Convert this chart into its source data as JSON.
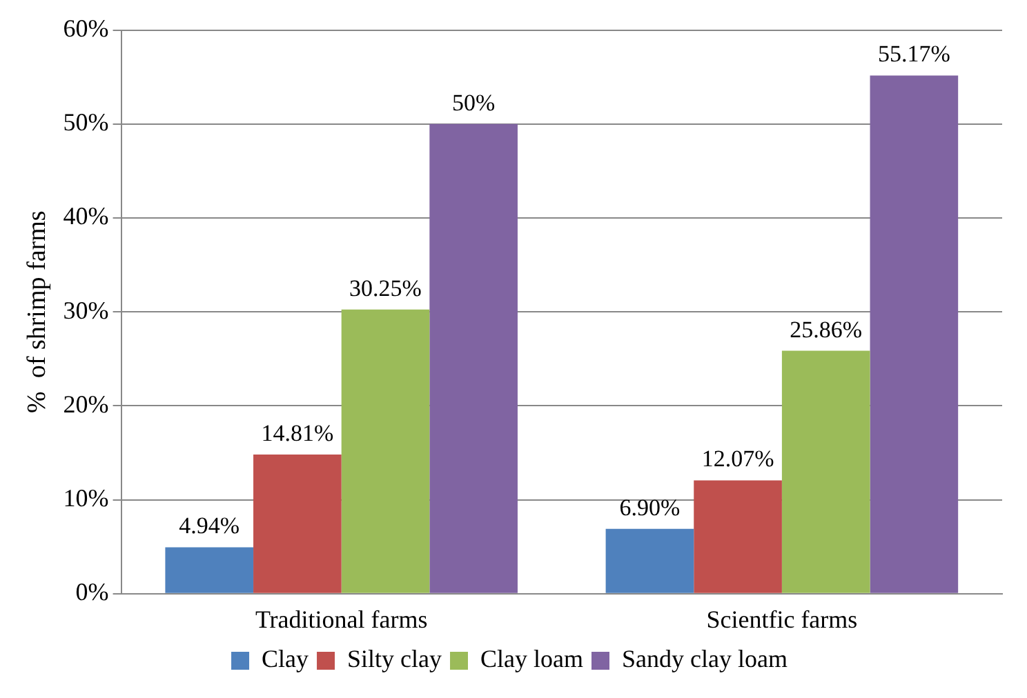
{
  "chart_data": {
    "type": "bar",
    "ylabel": "%  of shrimp farms",
    "categories": [
      "Traditional farms",
      "Scientfic farms"
    ],
    "series": [
      {
        "name": "Clay",
        "color": "#4f81bd",
        "values": [
          4.94,
          6.9
        ],
        "value_labels": [
          "4.94%",
          "6.90%"
        ]
      },
      {
        "name": "Silty clay",
        "color": "#c0504d",
        "values": [
          14.81,
          12.07
        ],
        "value_labels": [
          "14.81%",
          "12.07%"
        ]
      },
      {
        "name": "Clay loam",
        "color": "#9bbb59",
        "values": [
          30.25,
          25.86
        ],
        "value_labels": [
          "30.25%",
          "25.86%"
        ]
      },
      {
        "name": "Sandy clay loam",
        "color": "#8064a2",
        "values": [
          50,
          55.17
        ],
        "value_labels": [
          "50%",
          "55.17%"
        ]
      }
    ],
    "ylim": [
      0,
      60
    ],
    "yticks": [
      {
        "value": 0,
        "label": "0%"
      },
      {
        "value": 10,
        "label": "10%"
      },
      {
        "value": 20,
        "label": "20%"
      },
      {
        "value": 30,
        "label": "30%"
      },
      {
        "value": 40,
        "label": "40%"
      },
      {
        "value": 50,
        "label": "50%"
      },
      {
        "value": 60,
        "label": "60%"
      }
    ],
    "grid": "y",
    "legend": "bottom"
  }
}
